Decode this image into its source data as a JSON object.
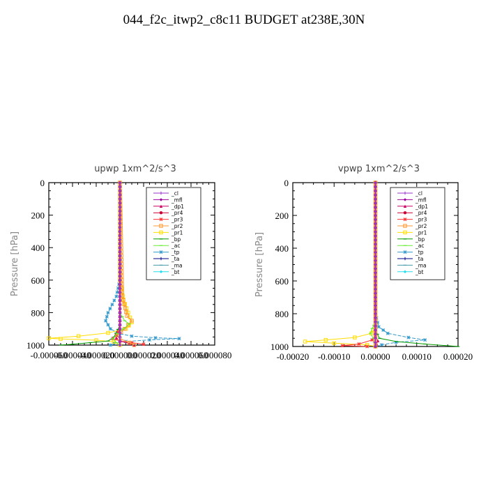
{
  "page": {
    "title": "044_f2c_itwp2_c8c11  BUDGET at238E,30N"
  },
  "legend_items": [
    {
      "label": "_cl",
      "color": "#9933cc",
      "marker": "plus"
    },
    {
      "label": "_mfl",
      "color": "#990099",
      "marker": "diamond"
    },
    {
      "label": "_dp1",
      "color": "#cc0066",
      "marker": "triangle"
    },
    {
      "label": "_pr4",
      "color": "#cc0033",
      "marker": "dot"
    },
    {
      "label": "_pr3",
      "color": "#ff3333",
      "marker": "star"
    },
    {
      "label": "_pr2",
      "color": "#ff9933",
      "marker": "square"
    },
    {
      "label": "_pr1",
      "color": "#ffdd00",
      "marker": "square"
    },
    {
      "label": "_bp",
      "color": "#009900",
      "marker": "dash"
    },
    {
      "label": "_ac",
      "color": "#66ee33",
      "marker": "dash"
    },
    {
      "label": "_tp",
      "color": "#3399cc",
      "marker": "star"
    },
    {
      "label": "_ta",
      "color": "#000088",
      "marker": "plus"
    },
    {
      "label": "_ma",
      "color": "#4499aa",
      "marker": "dash"
    },
    {
      "label": "_bt",
      "color": "#22ddee",
      "marker": "diamond"
    }
  ],
  "chart_data": [
    {
      "type": "line",
      "title": "upwp   1xm^2/s^3",
      "ylabel": "Pressure [hPa]",
      "xlabel": "",
      "xlim": [
        -6e-05,
        8e-05
      ],
      "ylim": [
        1000,
        0
      ],
      "y_reversed": true,
      "yticks": [
        0,
        200,
        400,
        600,
        800,
        1000
      ],
      "xtick_labels": [
        "-0.000060",
        "-0.000040",
        "-0.000020",
        "0.000000",
        "0.000020",
        "0.000040",
        "0.000060",
        "0.000080"
      ],
      "ytick_labels": [
        "0",
        "200",
        "400",
        "600",
        "800",
        "1000"
      ],
      "legend_position": "top-right",
      "grid": false,
      "series": [
        {
          "name": "_tp",
          "points": [
            [
              0,
              0
            ],
            [
              0,
              600
            ],
            [
              -3e-06,
              700
            ],
            [
              -1e-05,
              800
            ],
            [
              -1.2e-05,
              850
            ],
            [
              -8e-06,
              900
            ],
            [
              0,
              930
            ],
            [
              1e-05,
              945
            ],
            [
              3e-05,
              955
            ],
            [
              5e-05,
              960
            ],
            [
              2.5e-05,
              968
            ],
            [
              5e-06,
              978
            ],
            [
              -5e-06,
              990
            ],
            [
              -8e-06,
              1000
            ]
          ]
        },
        {
          "name": "_pr1",
          "points": [
            [
              0,
              0
            ],
            [
              0,
              600
            ],
            [
              3e-06,
              720
            ],
            [
              7e-06,
              800
            ],
            [
              1e-05,
              860
            ],
            [
              5e-06,
              900
            ],
            [
              -1e-05,
              925
            ],
            [
              -3.5e-05,
              945
            ],
            [
              -6e-05,
              958
            ],
            [
              -5e-05,
              962
            ],
            [
              -2e-05,
              970
            ],
            [
              -5e-06,
              980
            ],
            [
              0,
              1000
            ]
          ]
        },
        {
          "name": "_bp",
          "points": [
            [
              0,
              0
            ],
            [
              0,
              880
            ],
            [
              -5e-06,
              950
            ],
            [
              -1e-05,
              975
            ],
            [
              -2.5e-05,
              985
            ],
            [
              -4e-05,
              995
            ],
            [
              -5e-05,
              1000
            ]
          ]
        },
        {
          "name": "_pr3",
          "points": [
            [
              0,
              0
            ],
            [
              0,
              900
            ],
            [
              -3e-06,
              940
            ],
            [
              -6e-06,
              960
            ],
            [
              0,
              975
            ],
            [
              1e-05,
              985
            ],
            [
              2e-05,
              995
            ]
          ]
        },
        {
          "name": "_dp1",
          "points": [
            [
              0,
              0
            ],
            [
              0,
              920
            ],
            [
              -3e-06,
              955
            ],
            [
              0,
              975
            ],
            [
              8e-06,
              990
            ],
            [
              1.2e-05,
              1000
            ]
          ]
        },
        {
          "name": "_pr2",
          "points": [
            [
              0,
              0
            ],
            [
              2e-06,
              700
            ],
            [
              6e-06,
              820
            ],
            [
              1e-05,
              850
            ],
            [
              4e-06,
              900
            ],
            [
              -2e-06,
              940
            ],
            [
              0,
              960
            ],
            [
              8e-06,
              985
            ],
            [
              1.2e-05,
              1000
            ]
          ]
        },
        {
          "name": "_ac",
          "points": [
            [
              0,
              0
            ],
            [
              0,
              800
            ],
            [
              4e-06,
              850
            ],
            [
              8e-06,
              870
            ],
            [
              3e-06,
              900
            ],
            [
              -2e-06,
              930
            ],
            [
              -6e-06,
              960
            ],
            [
              -3e-06,
              985
            ],
            [
              0,
              1000
            ]
          ]
        },
        {
          "name": "_ta",
          "points": [
            [
              0,
              0
            ],
            [
              0,
              1000
            ]
          ]
        },
        {
          "name": "_ma",
          "points": [
            [
              0,
              0
            ],
            [
              0,
              1000
            ]
          ]
        },
        {
          "name": "_mfl",
          "points": [
            [
              0,
              0
            ],
            [
              0,
              1000
            ]
          ]
        },
        {
          "name": "_cl",
          "points": [
            [
              0,
              0
            ],
            [
              0,
              1000
            ]
          ]
        }
      ]
    },
    {
      "type": "line",
      "title": "vpwp   1xm^2/s^3",
      "ylabel": "Pressure [hPa]",
      "xlabel": "",
      "xlim": [
        -0.0002,
        0.0002
      ],
      "ylim": [
        1000,
        0
      ],
      "y_reversed": true,
      "yticks": [
        0,
        200,
        400,
        600,
        800,
        1000
      ],
      "xtick_labels": [
        "-0.00020",
        "-0.00010",
        "0.00000",
        "0.00010",
        "0.00020"
      ],
      "ytick_labels": [
        "0",
        "200",
        "400",
        "600",
        "800",
        "1000"
      ],
      "legend_position": "top-right",
      "grid": false,
      "series": [
        {
          "name": "_tp",
          "points": [
            [
              0,
              0
            ],
            [
              0,
              800
            ],
            [
              8e-06,
              880
            ],
            [
              3e-05,
              920
            ],
            [
              8e-05,
              945
            ],
            [
              0.00012,
              960
            ],
            [
              5e-05,
              975
            ],
            [
              1.5e-05,
              990
            ],
            [
              0,
              1000
            ]
          ]
        },
        {
          "name": "_pr1",
          "points": [
            [
              0,
              0
            ],
            [
              0,
              880
            ],
            [
              -1e-05,
              920
            ],
            [
              -5e-05,
              945
            ],
            [
              -0.00012,
              960
            ],
            [
              -0.00017,
              970
            ],
            [
              -0.0001,
              980
            ],
            [
              -2e-05,
              990
            ],
            [
              0,
              1000
            ]
          ]
        },
        {
          "name": "_bp",
          "points": [
            [
              0,
              0
            ],
            [
              0,
              900
            ],
            [
              1e-05,
              950
            ],
            [
              5e-05,
              970
            ],
            [
              0.00012,
              985
            ],
            [
              0.0002,
              1000
            ]
          ]
        },
        {
          "name": "_pr3",
          "points": [
            [
              0,
              0
            ],
            [
              0,
              930
            ],
            [
              -8e-06,
              960
            ],
            [
              -4e-05,
              985
            ],
            [
              -8e-05,
              995
            ],
            [
              -2e-05,
              1000
            ]
          ]
        },
        {
          "name": "_ac",
          "points": [
            [
              0,
              0
            ],
            [
              0,
              850
            ],
            [
              -8e-06,
              890
            ],
            [
              -1.2e-05,
              920
            ],
            [
              -5e-06,
              950
            ],
            [
              0,
              1000
            ]
          ]
        },
        {
          "name": "_dp1",
          "points": [
            [
              0,
              0
            ],
            [
              0,
              940
            ],
            [
              6e-06,
              965
            ],
            [
              3e-06,
              985
            ],
            [
              0,
              1000
            ]
          ]
        },
        {
          "name": "_pr2",
          "points": [
            [
              0,
              0
            ],
            [
              0,
              1000
            ]
          ]
        },
        {
          "name": "_ta",
          "points": [
            [
              0,
              0
            ],
            [
              0,
              1000
            ]
          ]
        },
        {
          "name": "_ma",
          "points": [
            [
              0,
              0
            ],
            [
              0,
              1000
            ]
          ]
        },
        {
          "name": "_mfl",
          "points": [
            [
              0,
              0
            ],
            [
              0,
              1000
            ]
          ]
        },
        {
          "name": "_cl",
          "points": [
            [
              0,
              0
            ],
            [
              0,
              1000
            ]
          ]
        }
      ]
    }
  ]
}
